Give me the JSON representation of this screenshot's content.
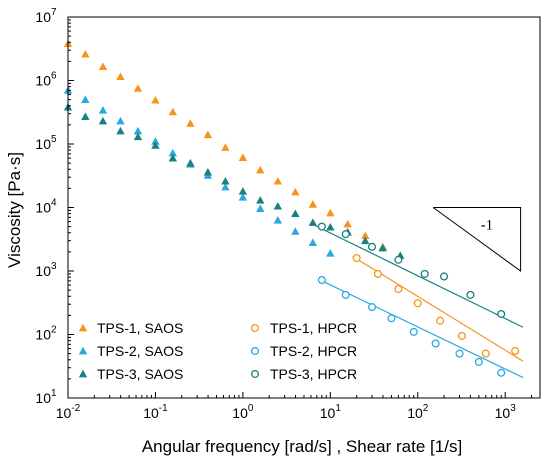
{
  "chart_data": {
    "type": "scatter",
    "title": "",
    "xlabel": "Angular frequency [rad/s] , Shear rate [1/s]",
    "ylabel": "Viscosity [Pa·s]",
    "xscale": "log",
    "yscale": "log",
    "xlim": [
      0.01,
      2500
    ],
    "ylim": [
      10,
      10000000
    ],
    "x_ticks": [
      {
        "base": "10",
        "exp": "-2",
        "value": 0.01
      },
      {
        "base": "10",
        "exp": "-1",
        "value": 0.1
      },
      {
        "base": "10",
        "exp": "0",
        "value": 1
      },
      {
        "base": "10",
        "exp": "1",
        "value": 10
      },
      {
        "base": "10",
        "exp": "2",
        "value": 100
      },
      {
        "base": "10",
        "exp": "3",
        "value": 1000
      }
    ],
    "y_ticks": [
      {
        "base": "10",
        "exp": "1",
        "value": 10
      },
      {
        "base": "10",
        "exp": "2",
        "value": 100
      },
      {
        "base": "10",
        "exp": "3",
        "value": 1000
      },
      {
        "base": "10",
        "exp": "4",
        "value": 10000
      },
      {
        "base": "10",
        "exp": "5",
        "value": 100000
      },
      {
        "base": "10",
        "exp": "6",
        "value": 1000000
      },
      {
        "base": "10",
        "exp": "7",
        "value": 10000000
      }
    ],
    "grid": false,
    "legend_position": "bottom-left",
    "slope_annotation": {
      "label": "-1",
      "x1": 150,
      "x2": 1500,
      "y_top": 10000,
      "y_bottom": 1000
    },
    "series": [
      {
        "name": "TPS-1, SAOS",
        "marker": "triangle",
        "filled": true,
        "color": "#F7931E",
        "x": [
          0.01,
          0.0158,
          0.0251,
          0.0398,
          0.0631,
          0.1,
          0.158,
          0.251,
          0.398,
          0.631,
          1.0,
          1.58,
          2.51,
          3.98,
          6.31,
          10,
          15.8,
          25.1,
          39.8
        ],
        "y": [
          3800000,
          2600000,
          1650000,
          1150000,
          750000,
          490000,
          320000,
          210000,
          140000,
          88000,
          61000,
          39000,
          26000,
          17500,
          11200,
          8200,
          5500,
          3600,
          2400
        ]
      },
      {
        "name": "TPS-2, SAOS",
        "marker": "triangle",
        "filled": true,
        "color": "#29A9E1",
        "x": [
          0.01,
          0.0158,
          0.0251,
          0.0398,
          0.0631,
          0.1,
          0.158,
          0.251,
          0.398,
          0.631,
          1.0,
          1.58,
          2.51,
          3.98,
          6.31,
          10
        ],
        "y": [
          700000,
          500000,
          340000,
          230000,
          160000,
          110000,
          72000,
          48000,
          32000,
          21000,
          14500,
          9600,
          6300,
          4200,
          2800,
          1900
        ]
      },
      {
        "name": "TPS-3, SAOS",
        "marker": "triangle",
        "filled": true,
        "color": "#1A8080",
        "x": [
          0.01,
          0.0158,
          0.0251,
          0.0398,
          0.0631,
          0.1,
          0.158,
          0.251,
          0.398,
          0.631,
          1.0,
          1.58,
          2.51,
          3.98,
          6.31,
          10,
          15.8,
          25.1,
          39.8,
          63.1
        ],
        "y": [
          380000,
          270000,
          230000,
          160000,
          130000,
          95000,
          60000,
          50000,
          36000,
          26000,
          18000,
          13000,
          10500,
          8000,
          5800,
          4900,
          4100,
          3000,
          2300,
          1750
        ]
      },
      {
        "name": "TPS-1, HPCR",
        "marker": "circle",
        "filled": false,
        "color": "#F7931E",
        "x": [
          20,
          35,
          60,
          100,
          180,
          320,
          600,
          1300
        ],
        "y": [
          1600,
          900,
          520,
          310,
          165,
          95,
          50,
          55
        ]
      },
      {
        "name": "TPS-2, HPCR",
        "marker": "circle",
        "filled": false,
        "color": "#29A9E1",
        "x": [
          8,
          15,
          30,
          50,
          90,
          160,
          300,
          500,
          900
        ],
        "y": [
          720,
          420,
          270,
          180,
          110,
          72,
          50,
          37,
          25
        ]
      },
      {
        "name": "TPS-3, HPCR",
        "marker": "circle",
        "filled": false,
        "color": "#1A8080",
        "x": [
          8,
          15,
          30,
          60,
          120,
          200,
          400,
          900
        ],
        "y": [
          5000,
          3800,
          2400,
          1500,
          900,
          820,
          420,
          210
        ]
      }
    ],
    "fit_lines": [
      {
        "series": "TPS-1, HPCR",
        "color": "#F7931E",
        "x": [
          18,
          1600
        ],
        "y": [
          1700,
          38
        ]
      },
      {
        "series": "TPS-2, HPCR",
        "color": "#29A9E1",
        "x": [
          8,
          1600
        ],
        "y": [
          700,
          21
        ]
      },
      {
        "series": "TPS-3, HPCR",
        "color": "#1A8080",
        "x": [
          6,
          1600
        ],
        "y": [
          5600,
          130
        ]
      }
    ]
  }
}
